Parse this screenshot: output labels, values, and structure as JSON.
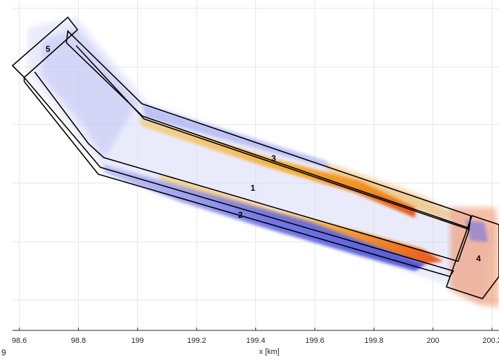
{
  "chart_data": {
    "type": "heatmap",
    "title": "",
    "xlabel": "x [km]",
    "ylabel": "",
    "xlim": [
      98.58,
      200.22
    ],
    "grid": true,
    "x_ticks": [
      {
        "value": 98.6,
        "label": "98.6"
      },
      {
        "value": 98.8,
        "label": "98.8"
      },
      {
        "value": 199.0,
        "label": "199"
      },
      {
        "value": 199.2,
        "label": "199.2"
      },
      {
        "value": 199.4,
        "label": "199.4"
      },
      {
        "value": 199.6,
        "label": "199.6"
      },
      {
        "value": 199.8,
        "label": "199.8"
      },
      {
        "value": 200.0,
        "label": "200"
      },
      {
        "value": 200.2,
        "label": "200.2"
      }
    ],
    "regions": [
      {
        "label": "1"
      },
      {
        "label": "2"
      },
      {
        "label": "3"
      },
      {
        "label": "4"
      },
      {
        "label": "5"
      }
    ],
    "corner_text": "9",
    "colors": {
      "positive": "#f5a623",
      "positive_strong": "#e8531c",
      "negative": "#6f74e6",
      "negative_light": "#c9ccf5",
      "outline": "#000000",
      "grid": "#e6e6e6"
    }
  }
}
